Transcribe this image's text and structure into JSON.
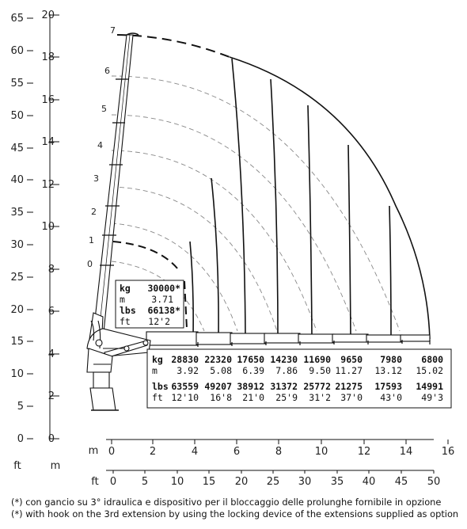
{
  "axes": {
    "ft_left": [
      "0",
      "5",
      "10",
      "15",
      "20",
      "25",
      "30",
      "35",
      "40",
      "45",
      "50",
      "55",
      "60",
      "65"
    ],
    "m_left": [
      "0",
      "2",
      "4",
      "6",
      "8",
      "10",
      "12",
      "14",
      "16",
      "18",
      "20"
    ],
    "m_bottom": [
      "0",
      "2",
      "4",
      "6",
      "8",
      "10",
      "12",
      "14",
      "16"
    ],
    "ft_bottom": [
      "0",
      "5",
      "10",
      "15",
      "20",
      "25",
      "30",
      "35",
      "40",
      "45",
      "50"
    ],
    "unit_ft": "ft",
    "unit_m": "m"
  },
  "boom_stages": [
    "0",
    "1",
    "2",
    "3",
    "4",
    "5",
    "6",
    "7"
  ],
  "load_box_left": {
    "kg_label": "kg",
    "kg_value": "30000*",
    "m_label": "m",
    "m_value": "3.71",
    "lbs_label": "lbs",
    "lbs_value": "66138*",
    "ft_label": "ft",
    "ft_value": "12'2"
  },
  "load_table": {
    "kg_label": "kg",
    "kg": [
      "28830",
      "22320",
      "17650",
      "14230",
      "11690",
      "9650",
      "7980",
      "6800"
    ],
    "m_label": "m",
    "m": [
      "3.92",
      "5.08",
      "6.39",
      "7.86",
      "9.50",
      "11.27",
      "13.12",
      "15.02"
    ],
    "lbs_label": "lbs",
    "lbs": [
      "63559",
      "49207",
      "38912",
      "31372",
      "25772",
      "21275",
      "17593",
      "14991"
    ],
    "ft_label": "ft",
    "ft": [
      "12'10",
      "16'8",
      "21'0",
      "25'9",
      "31'2",
      "37'0",
      "43'0",
      "49'3"
    ]
  },
  "notes": [
    "(*) con gancio su 3° idraulica e dispositivo per il bloccaggio delle prolunghe fornibile in opzione",
    "(*) with hook on the 3rd extension by using the locking device of the extensions supplied as option"
  ],
  "colors": {
    "line": "#111111",
    "grid_dash": "#888888"
  }
}
